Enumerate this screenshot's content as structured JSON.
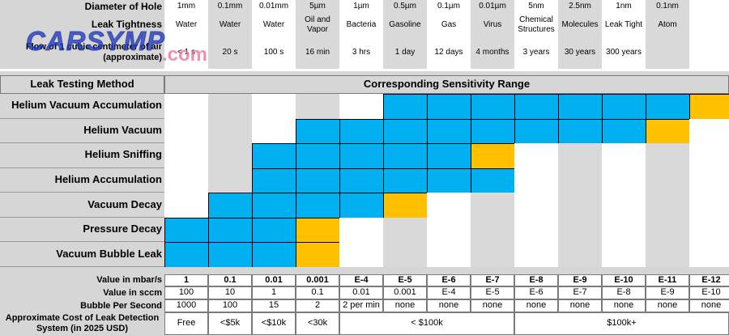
{
  "watermark": {
    "brand": "CARSYMP",
    "domain": ".com"
  },
  "top_rows": [
    {
      "label": "Diameter of Hole",
      "values": [
        "1mm",
        "0.1mm",
        "0.01mm",
        "5µm",
        "1µm",
        "0.5µm",
        "0.1µm",
        "0.01µm",
        "5nm",
        "2.5nm",
        "1nm",
        "0.1nm",
        ""
      ]
    },
    {
      "label": "Leak Tightness",
      "values": [
        "Water",
        "Water",
        "Water",
        "Oil and Vapor",
        "Bacteria",
        "Gasoline",
        "Gas",
        "Virus",
        "Chemical Structures",
        "Molecules",
        "Leak Tight",
        "Atom",
        ""
      ]
    },
    {
      "label": "Flow of 1 cubic centimeter of air (approximate)",
      "values": [
        "< 1 s",
        "20 s",
        "100 s",
        "16 min",
        "3 hrs",
        "1 day",
        "12 days",
        "4 months",
        "3 years",
        "30  years",
        "300 years",
        "",
        ""
      ]
    }
  ],
  "matrix": {
    "method_header": "Leak Testing Method",
    "range_header": "Corresponding Sensitivity Range",
    "colors": {
      "blue": "#00b0f0",
      "gold": "#ffc000",
      "grey": "#d9d9d9"
    },
    "methods": [
      {
        "name": "Helium Vacuum Accumulation",
        "blue_from": 6,
        "blue_to": 12,
        "gold_at": 13
      },
      {
        "name": "Helium Vacuum",
        "blue_from": 4,
        "blue_to": 11,
        "gold_at": 12
      },
      {
        "name": "Helium Sniffing",
        "blue_from": 3,
        "blue_to": 7,
        "gold_at": 8
      },
      {
        "name": "Helium Accumulation",
        "blue_from": 3,
        "blue_to": 8,
        "gold_at": null
      },
      {
        "name": "Vacuum Decay",
        "blue_from": 2,
        "blue_to": 5,
        "gold_at": 6
      },
      {
        "name": "Pressure Decay",
        "blue_from": 1,
        "blue_to": 3,
        "gold_at": 4
      },
      {
        "name": "Vacuum Bubble Leak",
        "blue_from": 1,
        "blue_to": 3,
        "gold_at": 4
      }
    ]
  },
  "bottom_rows": [
    {
      "label": "Value in mbar/s",
      "values": [
        "1",
        "0.1",
        "0.01",
        "0.001",
        "E-4",
        "E-5",
        "E-6",
        "E-7",
        "E-8",
        "E-9",
        "E-10",
        "E-11",
        "E-12"
      ]
    },
    {
      "label": "Value in sccm",
      "values": [
        "100",
        "10",
        "1",
        "0.1",
        "0.01",
        "0.001",
        "E-4",
        "E-5",
        "E-6",
        "E-7",
        "E-8",
        "E-9",
        "E-10"
      ]
    },
    {
      "label": "Bubble Per Second",
      "values": [
        "1000",
        "100",
        "15",
        "2",
        "2 per min",
        "none",
        "none",
        "none",
        "none",
        "none",
        "none",
        "none",
        "none"
      ]
    }
  ],
  "cost_row": {
    "label": "Approximate Cost of Leak Detection System (in 2025 USD)",
    "values": [
      "Free",
      "<$5k",
      "<$10k",
      "<30k",
      "< $100k",
      "$100k+"
    ]
  }
}
